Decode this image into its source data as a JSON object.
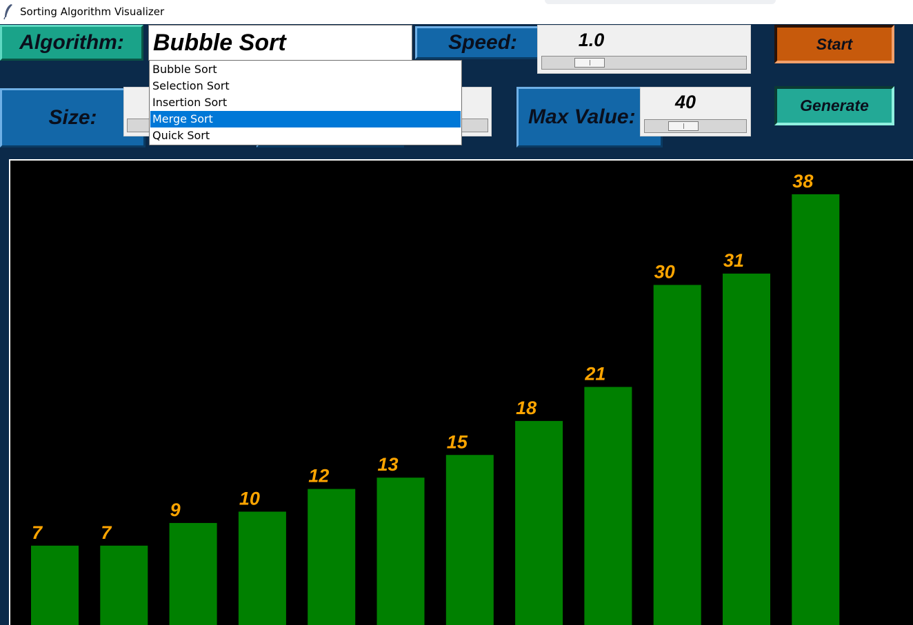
{
  "window": {
    "title": "Sorting Algorithm Visualizer",
    "icon": "feather-icon"
  },
  "controls": {
    "algorithm_label": "Algorithm:",
    "algorithm_value": "Bubble Sort",
    "algorithm_options": [
      "Bubble Sort",
      "Selection Sort",
      "Insertion Sort",
      "Merge Sort",
      "Quick Sort"
    ],
    "highlighted_option": "Merge Sort",
    "speed_label": "Speed:",
    "speed_value": "1.0",
    "size_label": "Size:",
    "max_value_label": "Max Value:",
    "max_value": "40",
    "start_label": "Start",
    "generate_label": "Generate"
  },
  "colors": {
    "bar": "#008000",
    "bar_label": "#ffa500",
    "canvas_bg": "#000000",
    "window_bg": "#0b2a4a",
    "start_button": "#c75a0c",
    "generate_button": "#23a996"
  },
  "chart_data": {
    "type": "bar",
    "values": [
      7,
      7,
      9,
      10,
      12,
      13,
      15,
      18,
      21,
      30,
      31,
      38
    ],
    "ylim": [
      0,
      40
    ]
  }
}
